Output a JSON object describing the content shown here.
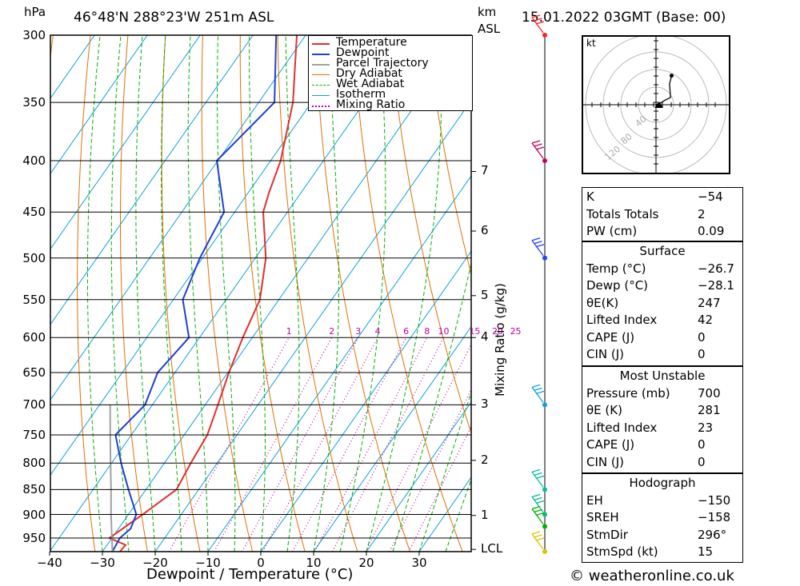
{
  "header": {
    "pressure_unit": "hPa",
    "location": "46°48'N  288°23'W  251m  ASL",
    "km_unit": "km",
    "asl_unit": "ASL",
    "datetime": "15.01.2022  03GMT  (Base: 00)"
  },
  "chart_data": {
    "type": "line",
    "title": "Skew-T log-P diagram",
    "xlabel": "Dewpoint / Temperature (°C)",
    "ylabel": "hPa",
    "secondary_ylabel": "Mixing Ratio (g/kg)",
    "pressure_levels": [
      300,
      350,
      400,
      450,
      500,
      550,
      600,
      650,
      700,
      750,
      800,
      850,
      900,
      950
    ],
    "pressure_labels": [
      "300",
      "350",
      "400",
      "450",
      "500",
      "550",
      "600",
      "650",
      "700",
      "750",
      "800",
      "850",
      "900",
      "950"
    ],
    "temperature_ticks": [
      -40,
      -30,
      -20,
      -10,
      0,
      10,
      20,
      30
    ],
    "temperature_tick_labels": [
      "−40",
      "−30",
      "−20",
      "−10",
      "0",
      "10",
      "20",
      "30"
    ],
    "km_labels": [
      "7",
      "6",
      "5",
      "4",
      "3",
      "2",
      "1",
      "LCL"
    ],
    "mixing_ratio_labels": [
      "1",
      "2",
      "3",
      "4",
      "6",
      "8",
      "10",
      "15",
      "20",
      "25"
    ],
    "legend": [
      "Temperature",
      "Dewpoint",
      "Parcel Trajectory",
      "Dry Adiabat",
      "Wet Adiabat",
      "Isotherm",
      "Mixing Ratio"
    ],
    "colors": {
      "temperature": "#e03030",
      "dewpoint": "#2040d0",
      "parcel": "#a0a0a0",
      "dry_adiabat": "#e07000",
      "wet_adiabat": "#00b000",
      "isotherm": "#10a0e0",
      "mixing_ratio": "#c000a0"
    },
    "series": [
      {
        "name": "Temperature",
        "points": [
          [
            980,
            -26.7
          ],
          [
            965,
            -26.5
          ],
          [
            950,
            -30.5
          ],
          [
            900,
            -27.3
          ],
          [
            850,
            -24.2
          ],
          [
            800,
            -25.0
          ],
          [
            750,
            -25.6
          ],
          [
            700,
            -27.6
          ],
          [
            650,
            -29.8
          ],
          [
            600,
            -31.8
          ],
          [
            550,
            -33.6
          ],
          [
            500,
            -38.0
          ],
          [
            450,
            -44.6
          ],
          [
            430,
            -46.1
          ],
          [
            400,
            -48.1
          ],
          [
            350,
            -53.5
          ],
          [
            300,
            -61.7
          ]
        ]
      },
      {
        "name": "Dewpoint",
        "points": [
          [
            980,
            -28.1
          ],
          [
            950,
            -28.5
          ],
          [
            930,
            -27.7
          ],
          [
            900,
            -28.5
          ],
          [
            850,
            -33.3
          ],
          [
            800,
            -38.2
          ],
          [
            750,
            -43.0
          ],
          [
            700,
            -41.4
          ],
          [
            650,
            -43.3
          ],
          [
            600,
            -42.0
          ],
          [
            550,
            -48.2
          ],
          [
            500,
            -50.5
          ],
          [
            450,
            -52.0
          ],
          [
            400,
            -60.2
          ],
          [
            350,
            -57.0
          ],
          [
            300,
            -65.6
          ]
        ]
      },
      {
        "name": "Parcel Trajectory",
        "points": [
          [
            980,
            -28.1
          ],
          [
            950,
            -30.0
          ],
          [
            900,
            -33.3
          ],
          [
            850,
            -36.6
          ],
          [
            800,
            -40.2
          ],
          [
            750,
            -44.0
          ],
          [
            700,
            -48.0
          ]
        ]
      }
    ],
    "hodograph": {
      "unit": "kt",
      "ring_labels": [
        "40",
        "80",
        "120"
      ],
      "points": [
        [
          0,
          0
        ],
        [
          5,
          2
        ],
        [
          8,
          4
        ],
        [
          12,
          6
        ],
        [
          14,
          7
        ],
        [
          13,
          20
        ],
        [
          15,
          28
        ]
      ]
    },
    "wind_barbs": [
      {
        "pressure": 300,
        "color": "#ff2020"
      },
      {
        "pressure": 400,
        "color": "#c00060"
      },
      {
        "pressure": 500,
        "color": "#2040ff"
      },
      {
        "pressure": 700,
        "color": "#10a0e0"
      },
      {
        "pressure": 850,
        "color": "#00c0a0"
      },
      {
        "pressure": 900,
        "color": "#00c080"
      },
      {
        "pressure": 925,
        "color": "#00b000"
      },
      {
        "pressure": 1000,
        "color": "#e0c000"
      }
    ]
  },
  "indices": {
    "general": [
      {
        "label": "K",
        "value": "−54"
      },
      {
        "label": "Totals Totals",
        "value": "2"
      },
      {
        "label": "PW (cm)",
        "value": "0.09"
      }
    ],
    "surface": {
      "title": "Surface",
      "rows": [
        {
          "label": "Temp (°C)",
          "value": "−26.7"
        },
        {
          "label": "Dewp (°C)",
          "value": "−28.1"
        },
        {
          "label": "θE(K)",
          "value": "247"
        },
        {
          "label": "Lifted Index",
          "value": "42"
        },
        {
          "label": "CAPE (J)",
          "value": "0"
        },
        {
          "label": "CIN (J)",
          "value": "0"
        }
      ]
    },
    "most_unstable": {
      "title": "Most Unstable",
      "rows": [
        {
          "label": "Pressure (mb)",
          "value": "700"
        },
        {
          "label": "θE (K)",
          "value": "281"
        },
        {
          "label": "Lifted Index",
          "value": "23"
        },
        {
          "label": "CAPE (J)",
          "value": "0"
        },
        {
          "label": "CIN (J)",
          "value": "0"
        }
      ]
    },
    "hodograph": {
      "title": "Hodograph",
      "rows": [
        {
          "label": "EH",
          "value": "−150"
        },
        {
          "label": "SREH",
          "value": "−158"
        },
        {
          "label": "StmDir",
          "value": "296°"
        },
        {
          "label": "StmSpd (kt)",
          "value": "15"
        }
      ]
    }
  },
  "footer": {
    "copyright": "© weatheronline.co.uk"
  }
}
